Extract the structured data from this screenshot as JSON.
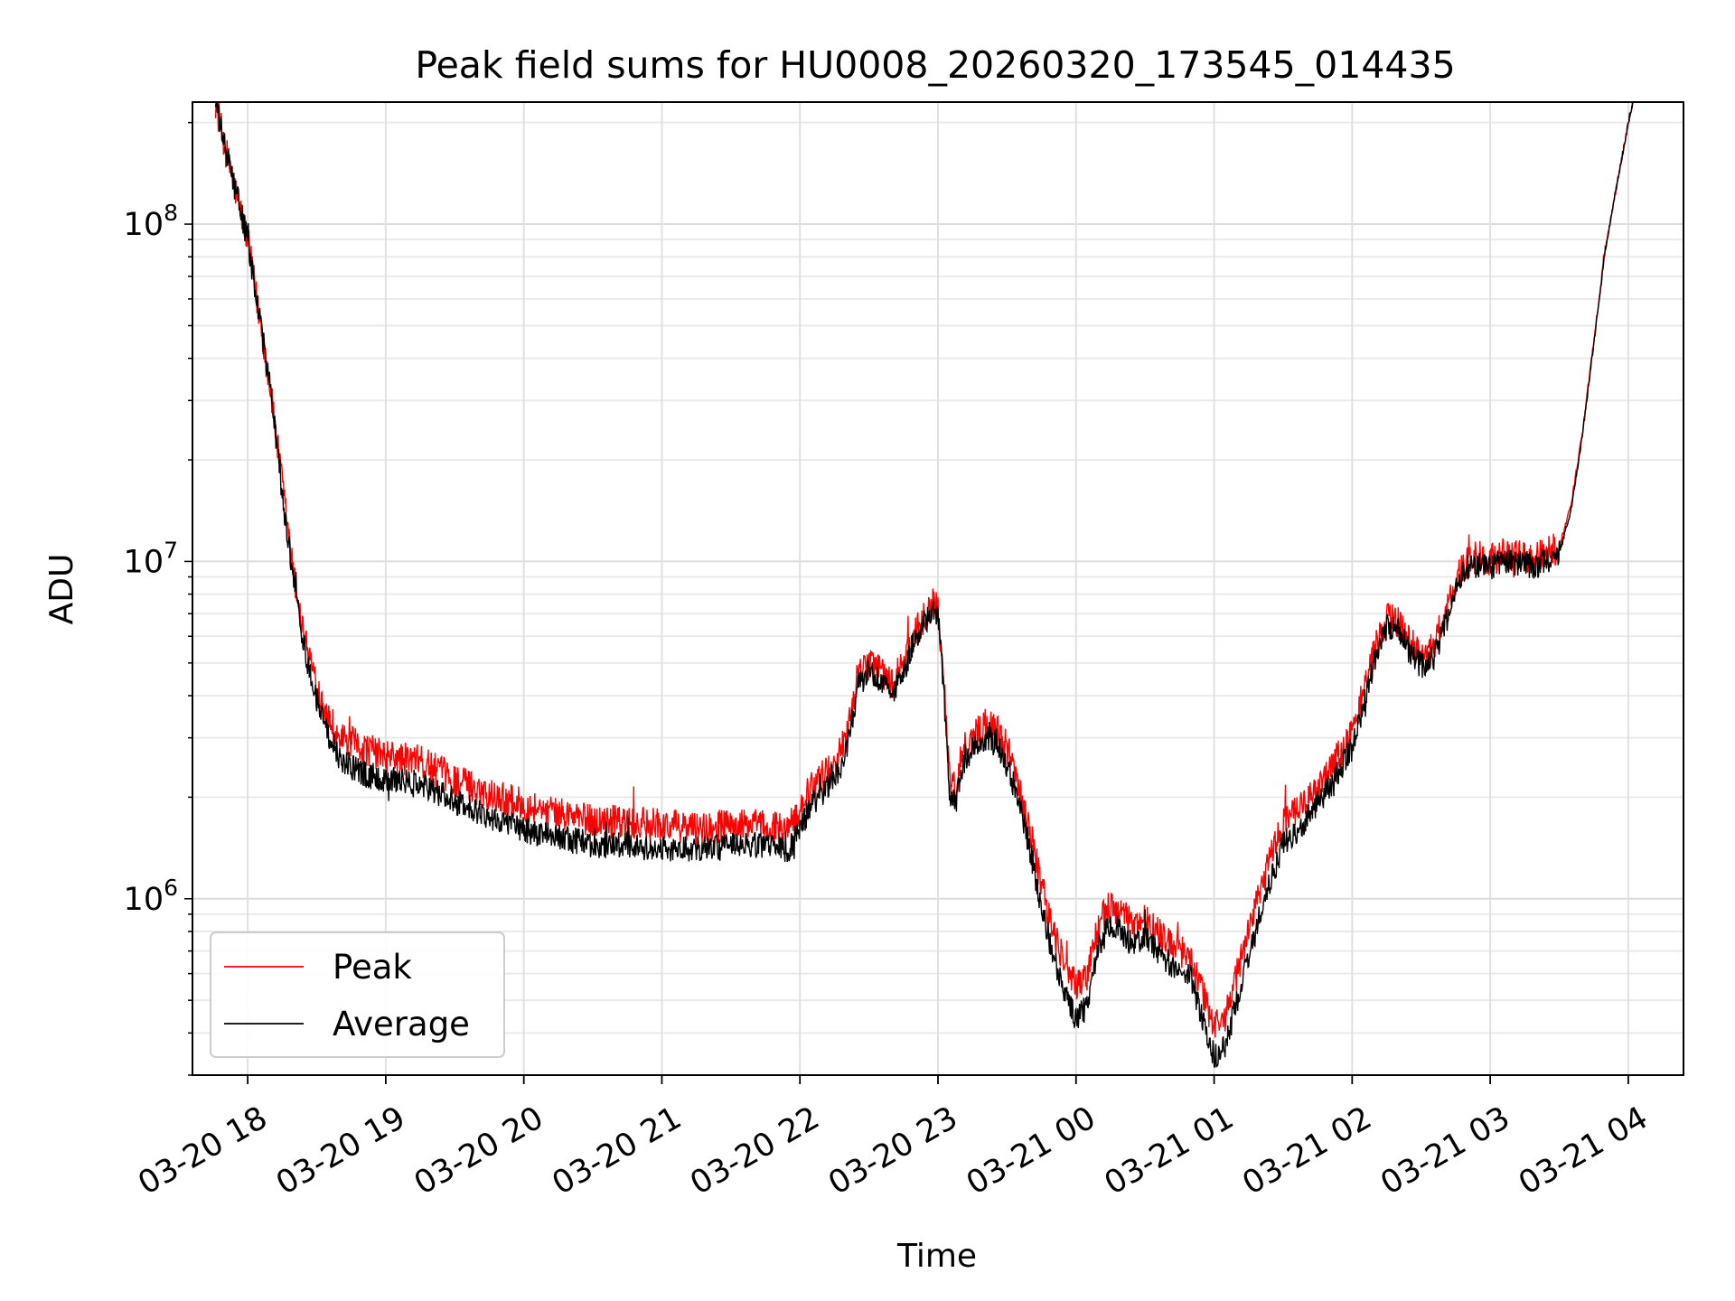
{
  "chart_data": {
    "type": "line",
    "title": "Peak field sums for HU0008_20260320_173545_014435",
    "xlabel": "Time",
    "ylabel": "ADU",
    "yscale": "log",
    "xlim": [
      "03-20 17:36",
      "03-21 04:24"
    ],
    "ylim": [
      300000,
      230000000
    ],
    "grid": true,
    "legend_position": "lower-left",
    "x_ticks": [
      "03-20 18",
      "03-20 19",
      "03-20 20",
      "03-20 21",
      "03-20 22",
      "03-20 23",
      "03-21 00",
      "03-21 01",
      "03-21 02",
      "03-21 03",
      "03-21 04"
    ],
    "y_ticks": [
      {
        "value": 1000000,
        "base": "10",
        "exp": "6"
      },
      {
        "value": 10000000,
        "base": "10",
        "exp": "7"
      },
      {
        "value": 100000000,
        "base": "10",
        "exp": "8"
      }
    ],
    "series": [
      {
        "name": "Peak",
        "color": "#ff0000",
        "noise": 0.05,
        "points": [
          [
            "03-20 17:46",
            230000000
          ],
          [
            "03-20 17:50",
            170000000
          ],
          [
            "03-20 18:00",
            90000000
          ],
          [
            "03-20 18:10",
            32000000
          ],
          [
            "03-20 18:15",
            17000000
          ],
          [
            "03-20 18:20",
            9000000
          ],
          [
            "03-20 18:25",
            5800000
          ],
          [
            "03-20 18:30",
            4300000
          ],
          [
            "03-20 18:35",
            3500000
          ],
          [
            "03-20 18:40",
            3000000
          ],
          [
            "03-20 18:50",
            2800000
          ],
          [
            "03-20 19:00",
            2650000
          ],
          [
            "03-20 19:15",
            2550000
          ],
          [
            "03-20 19:30",
            2250000
          ],
          [
            "03-20 19:45",
            2050000
          ],
          [
            "03-20 20:00",
            1900000
          ],
          [
            "03-20 20:15",
            1800000
          ],
          [
            "03-20 20:30",
            1700000
          ],
          [
            "03-20 20:45",
            1680000
          ],
          [
            "03-20 21:00",
            1650000
          ],
          [
            "03-20 21:15",
            1620000
          ],
          [
            "03-20 21:30",
            1650000
          ],
          [
            "03-20 21:45",
            1650000
          ],
          [
            "03-20 21:55",
            1600000
          ],
          [
            "03-20 22:00",
            1850000
          ],
          [
            "03-20 22:05",
            2150000
          ],
          [
            "03-20 22:15",
            2500000
          ],
          [
            "03-20 22:20",
            3000000
          ],
          [
            "03-20 22:25",
            4500000
          ],
          [
            "03-20 22:30",
            5000000
          ],
          [
            "03-20 22:35",
            4800000
          ],
          [
            "03-20 22:40",
            4300000
          ],
          [
            "03-20 22:45",
            5000000
          ],
          [
            "03-20 22:50",
            6200000
          ],
          [
            "03-20 22:55",
            7000000
          ],
          [
            "03-20 22:58",
            7700000
          ],
          [
            "03-20 23:00",
            7200000
          ],
          [
            "03-20 23:02",
            5000000
          ],
          [
            "03-20 23:05",
            2300000
          ],
          [
            "03-20 23:08",
            2100000
          ],
          [
            "03-20 23:10",
            2700000
          ],
          [
            "03-20 23:15",
            3000000
          ],
          [
            "03-20 23:20",
            3300000
          ],
          [
            "03-20 23:25",
            3200000
          ],
          [
            "03-20 23:30",
            2800000
          ],
          [
            "03-20 23:35",
            2200000
          ],
          [
            "03-20 23:40",
            1600000
          ],
          [
            "03-20 23:45",
            1100000
          ],
          [
            "03-20 23:50",
            800000
          ],
          [
            "03-20 23:55",
            650000
          ],
          [
            "03-21 00:00",
            550000
          ],
          [
            "03-21 00:05",
            600000
          ],
          [
            "03-21 00:10",
            850000
          ],
          [
            "03-21 00:15",
            950000
          ],
          [
            "03-21 00:20",
            900000
          ],
          [
            "03-21 00:25",
            820000
          ],
          [
            "03-21 00:30",
            880000
          ],
          [
            "03-21 00:35",
            800000
          ],
          [
            "03-21 00:40",
            750000
          ],
          [
            "03-21 00:45",
            700000
          ],
          [
            "03-21 00:50",
            680000
          ],
          [
            "03-21 00:55",
            520000
          ],
          [
            "03-21 01:00",
            420000
          ],
          [
            "03-21 01:05",
            450000
          ],
          [
            "03-21 01:10",
            600000
          ],
          [
            "03-21 01:15",
            800000
          ],
          [
            "03-21 01:20",
            1050000
          ],
          [
            "03-21 01:25",
            1350000
          ],
          [
            "03-21 01:30",
            1700000
          ],
          [
            "03-21 01:40",
            1900000
          ],
          [
            "03-21 01:50",
            2400000
          ],
          [
            "03-21 02:00",
            3100000
          ],
          [
            "03-21 02:10",
            5500000
          ],
          [
            "03-21 02:15",
            6800000
          ],
          [
            "03-21 02:20",
            6700000
          ],
          [
            "03-21 02:25",
            5800000
          ],
          [
            "03-21 02:30",
            5300000
          ],
          [
            "03-21 02:35",
            5500000
          ],
          [
            "03-21 02:40",
            6800000
          ],
          [
            "03-21 02:45",
            8700000
          ],
          [
            "03-21 02:50",
            10100000
          ],
          [
            "03-21 02:55",
            10300000
          ],
          [
            "03-21 03:00",
            10000000
          ],
          [
            "03-21 03:05",
            10500000
          ],
          [
            "03-21 03:10",
            10400000
          ],
          [
            "03-21 03:15",
            10300000
          ],
          [
            "03-21 03:20",
            10200000
          ],
          [
            "03-21 03:25",
            10600000
          ],
          [
            "03-21 03:30",
            11000000
          ],
          [
            "03-21 03:35",
            14500000
          ],
          [
            "03-21 03:40",
            24000000
          ],
          [
            "03-21 03:45",
            45000000
          ],
          [
            "03-21 03:50",
            85000000
          ],
          [
            "03-21 03:55",
            130000000
          ],
          [
            "03-21 04:00",
            200000000
          ],
          [
            "03-21 04:02",
            230000000
          ]
        ]
      },
      {
        "name": "Average",
        "color": "#000000",
        "noise": 0.04,
        "points": [
          [
            "03-20 17:46",
            230000000
          ],
          [
            "03-20 17:50",
            170000000
          ],
          [
            "03-20 18:00",
            90000000
          ],
          [
            "03-20 18:10",
            32000000
          ],
          [
            "03-20 18:15",
            16000000
          ],
          [
            "03-20 18:20",
            8500000
          ],
          [
            "03-20 18:25",
            5400000
          ],
          [
            "03-20 18:30",
            3900000
          ],
          [
            "03-20 18:35",
            3100000
          ],
          [
            "03-20 18:40",
            2600000
          ],
          [
            "03-20 18:50",
            2350000
          ],
          [
            "03-20 19:00",
            2250000
          ],
          [
            "03-20 19:15",
            2200000
          ],
          [
            "03-20 19:30",
            1950000
          ],
          [
            "03-20 19:45",
            1750000
          ],
          [
            "03-20 20:00",
            1600000
          ],
          [
            "03-20 20:15",
            1520000
          ],
          [
            "03-20 20:30",
            1450000
          ],
          [
            "03-20 20:45",
            1430000
          ],
          [
            "03-20 21:00",
            1400000
          ],
          [
            "03-20 21:15",
            1400000
          ],
          [
            "03-20 21:30",
            1430000
          ],
          [
            "03-20 21:45",
            1450000
          ],
          [
            "03-20 21:55",
            1380000
          ],
          [
            "03-20 22:00",
            1600000
          ],
          [
            "03-20 22:05",
            1900000
          ],
          [
            "03-20 22:15",
            2250000
          ],
          [
            "03-20 22:20",
            2700000
          ],
          [
            "03-20 22:25",
            4200000
          ],
          [
            "03-20 22:30",
            4700000
          ],
          [
            "03-20 22:35",
            4500000
          ],
          [
            "03-20 22:40",
            4000000
          ],
          [
            "03-20 22:45",
            4700000
          ],
          [
            "03-20 22:50",
            5900000
          ],
          [
            "03-20 22:55",
            6700000
          ],
          [
            "03-20 22:58",
            7300000
          ],
          [
            "03-20 23:00",
            6800000
          ],
          [
            "03-20 23:02",
            4700000
          ],
          [
            "03-20 23:05",
            2000000
          ],
          [
            "03-20 23:08",
            1900000
          ],
          [
            "03-20 23:10",
            2400000
          ],
          [
            "03-20 23:15",
            2750000
          ],
          [
            "03-20 23:20",
            3000000
          ],
          [
            "03-20 23:25",
            2900000
          ],
          [
            "03-20 23:30",
            2500000
          ],
          [
            "03-20 23:35",
            1950000
          ],
          [
            "03-20 23:40",
            1400000
          ],
          [
            "03-20 23:45",
            950000
          ],
          [
            "03-20 23:50",
            680000
          ],
          [
            "03-20 23:55",
            520000
          ],
          [
            "03-21 00:00",
            440000
          ],
          [
            "03-21 00:05",
            480000
          ],
          [
            "03-21 00:10",
            720000
          ],
          [
            "03-21 00:15",
            850000
          ],
          [
            "03-21 00:20",
            800000
          ],
          [
            "03-21 00:25",
            720000
          ],
          [
            "03-21 00:30",
            770000
          ],
          [
            "03-21 00:35",
            700000
          ],
          [
            "03-21 00:40",
            650000
          ],
          [
            "03-21 00:45",
            600000
          ],
          [
            "03-21 00:50",
            580000
          ],
          [
            "03-21 00:55",
            440000
          ],
          [
            "03-21 01:00",
            340000
          ],
          [
            "03-21 01:05",
            370000
          ],
          [
            "03-21 01:10",
            500000
          ],
          [
            "03-21 01:15",
            680000
          ],
          [
            "03-21 01:20",
            900000
          ],
          [
            "03-21 01:25",
            1150000
          ],
          [
            "03-21 01:30",
            1450000
          ],
          [
            "03-21 01:40",
            1700000
          ],
          [
            "03-21 01:50",
            2150000
          ],
          [
            "03-21 02:00",
            2800000
          ],
          [
            "03-21 02:10",
            5100000
          ],
          [
            "03-21 02:15",
            6400000
          ],
          [
            "03-21 02:20",
            6300000
          ],
          [
            "03-21 02:25",
            5400000
          ],
          [
            "03-21 02:30",
            4900000
          ],
          [
            "03-21 02:35",
            5100000
          ],
          [
            "03-21 02:40",
            6400000
          ],
          [
            "03-21 02:45",
            8300000
          ],
          [
            "03-21 02:50",
            9600000
          ],
          [
            "03-21 02:55",
            9800000
          ],
          [
            "03-21 03:00",
            9500000
          ],
          [
            "03-21 03:05",
            10000000
          ],
          [
            "03-21 03:10",
            9900000
          ],
          [
            "03-21 03:15",
            9800000
          ],
          [
            "03-21 03:20",
            9700000
          ],
          [
            "03-21 03:25",
            10100000
          ],
          [
            "03-21 03:30",
            10600000
          ],
          [
            "03-21 03:35",
            14000000
          ],
          [
            "03-21 03:40",
            23500000
          ],
          [
            "03-21 03:45",
            44000000
          ],
          [
            "03-21 03:50",
            84000000
          ],
          [
            "03-21 03:55",
            130000000
          ],
          [
            "03-21 04:00",
            200000000
          ],
          [
            "03-21 04:02",
            230000000
          ]
        ]
      }
    ]
  }
}
